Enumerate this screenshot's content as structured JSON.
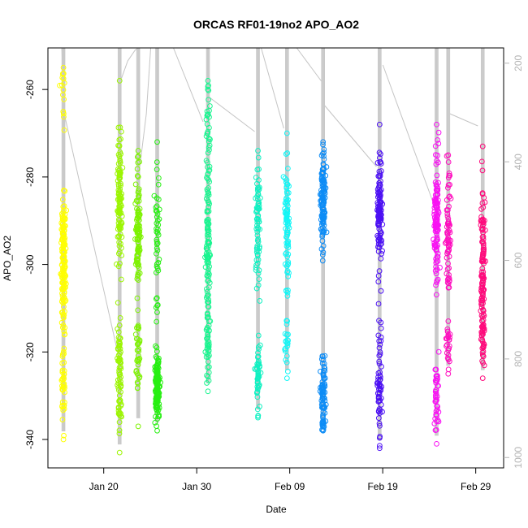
{
  "chart_data": {
    "type": "scatter",
    "title": "ORCAS RF01-19no2 APO_AO2",
    "xlabel": "Date",
    "ylabel": "APO_AO2",
    "x_axis": {
      "type": "date",
      "range": [
        "2016-01-14T00:00",
        "2016-03-03T00:00"
      ],
      "ticks": [
        "Jan 20",
        "Jan 30",
        "Feb 09",
        "Feb 19",
        "Feb 29"
      ],
      "tick_dates": [
        "2016-01-20",
        "2016-01-30",
        "2016-02-09",
        "2016-02-19",
        "2016-02-29"
      ]
    },
    "y_axis": {
      "range": [
        -346.5,
        -250.5
      ],
      "ticks": [
        "-340",
        "-320",
        "-300",
        "-280",
        "-260"
      ],
      "tick_values": [
        -340,
        -320,
        -300,
        -280,
        -260
      ]
    },
    "y2_axis": {
      "description": "secondary scale (right)",
      "range": [
        1021,
        169
      ],
      "ticks": [
        "200",
        "400",
        "600",
        "800",
        "1000"
      ],
      "tick_values": [
        200,
        400,
        600,
        800,
        1000
      ],
      "color": "#b4b4b4"
    },
    "grid": false,
    "legend": "none",
    "marker": "open-circle",
    "flights": [
      {
        "date": "2016-01-15T16:00",
        "color": "#ffff00",
        "y_min": -340,
        "y_max": -255,
        "clusters": [
          [
            -300,
            7,
            130
          ],
          [
            -327,
            6,
            40
          ],
          [
            -261,
            4,
            14
          ],
          [
            -290,
            3,
            20
          ]
        ]
      },
      {
        "date": "2016-01-21T17:00",
        "color": "#9cf600",
        "y_min": -343,
        "y_max": -258,
        "clusters": [
          [
            -285,
            7,
            110
          ],
          [
            -322,
            5,
            45
          ],
          [
            -332,
            4,
            30
          ]
        ]
      },
      {
        "date": "2016-01-23T17:00",
        "color": "#7df200",
        "y_min": -337,
        "y_max": -274,
        "clusters": [
          [
            -295,
            5,
            90
          ],
          [
            -320,
            4,
            35
          ],
          [
            -280,
            3,
            15
          ]
        ]
      },
      {
        "date": "2016-01-25T18:00",
        "color": "#27ef12",
        "y_min": -338,
        "y_max": -272,
        "clusters": [
          [
            -328,
            4,
            140
          ],
          [
            -295,
            8,
            45
          ]
        ]
      },
      {
        "date": "2016-01-31T05:00",
        "color": "#1af590",
        "y_min": -329,
        "y_max": -258,
        "clusters": [
          [
            -295,
            9,
            110
          ],
          [
            -318,
            6,
            40
          ],
          [
            -268,
            5,
            30
          ]
        ]
      },
      {
        "date": "2016-02-05T14:00",
        "color": "#10f1c2",
        "y_min": -335,
        "y_max": -274,
        "clusters": [
          [
            -290,
            7,
            70
          ],
          [
            -325,
            4,
            50
          ]
        ]
      },
      {
        "date": "2016-02-08T17:00",
        "color": "#12f6f6",
        "y_min": -326,
        "y_max": -270,
        "clusters": [
          [
            -292,
            7,
            85
          ],
          [
            -318,
            3,
            20
          ]
        ]
      },
      {
        "date": "2016-02-12T14:00",
        "color": "#0d8cf6",
        "y_min": -338,
        "y_max": -272,
        "clusters": [
          [
            -285,
            6,
            120
          ],
          [
            -330,
            5,
            85
          ]
        ]
      },
      {
        "date": "2016-02-18T16:00",
        "color": "#4c10f4",
        "y_min": -342,
        "y_max": -268,
        "clusters": [
          [
            -288,
            6,
            115
          ],
          [
            -328,
            7,
            60
          ]
        ]
      },
      {
        "date": "2016-02-24T19:00",
        "color": "#f910f3",
        "y_min": -341,
        "y_max": -268,
        "clusters": [
          [
            -290,
            8,
            120
          ],
          [
            -330,
            4,
            40
          ]
        ]
      },
      {
        "date": "2016-02-26T01:00",
        "color": "#ff0dbf",
        "y_min": -325,
        "y_max": -275,
        "clusters": [
          [
            -292,
            7,
            70
          ],
          [
            -318,
            3,
            25
          ]
        ]
      },
      {
        "date": "2016-02-29T18:00",
        "color": "#ff0a7c",
        "y_min": -326,
        "y_max": -273,
        "clusters": [
          [
            -300,
            9,
            110
          ],
          [
            -318,
            3,
            30
          ]
        ]
      }
    ]
  }
}
